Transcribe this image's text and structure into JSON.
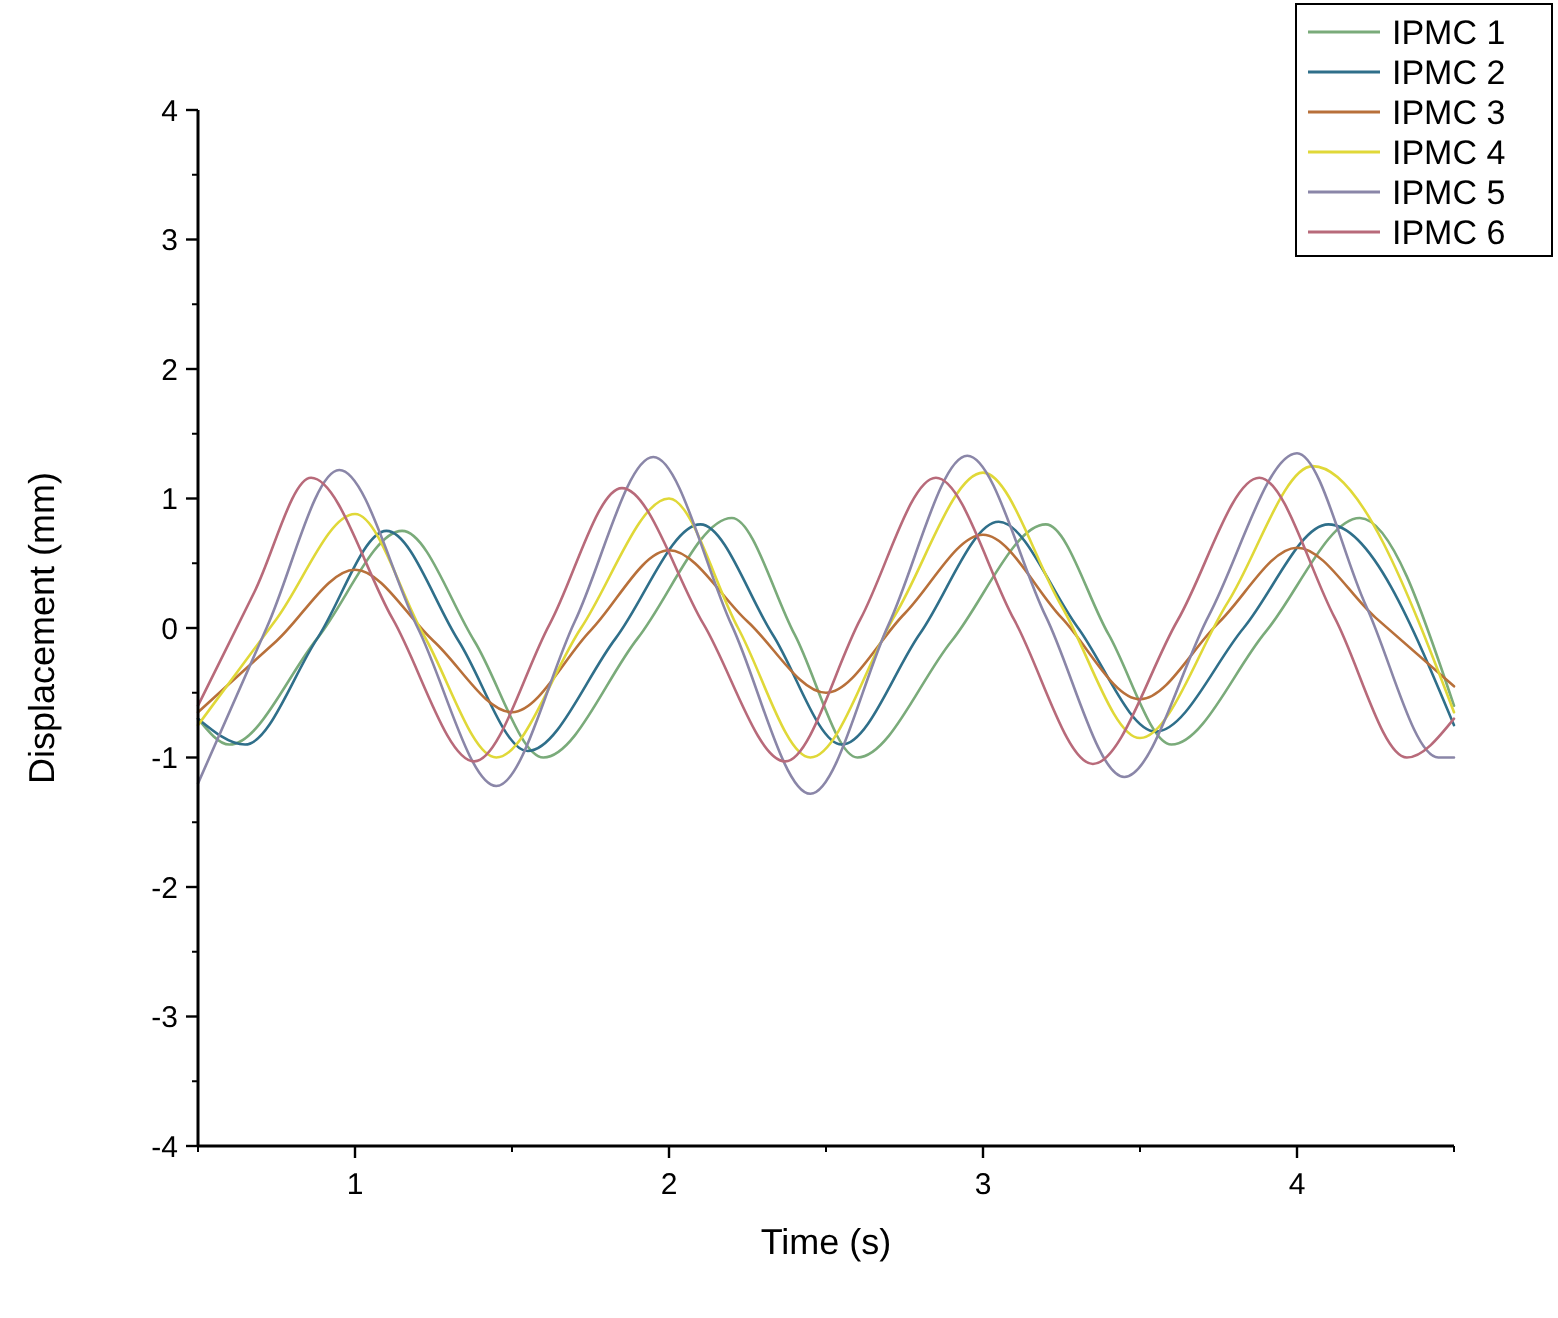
{
  "chart_data": {
    "type": "line",
    "xlabel": "Time (s)",
    "ylabel": "Displacement (mm)",
    "xlim": [
      0.5,
      4.5
    ],
    "xticks": [
      1,
      2,
      3,
      4
    ],
    "ylim": [
      -4,
      4
    ],
    "yticks": [
      -4,
      -3,
      -2,
      -1,
      0,
      1,
      2,
      3,
      4
    ],
    "legend": "top right",
    "grid": false,
    "marker": "none",
    "line_style": "solid",
    "series": [
      {
        "name": "IPMC 1",
        "color": "#7aab7a",
        "x": [
          0.5,
          0.6,
          0.88,
          1.15,
          1.38,
          1.6,
          1.9,
          2.2,
          2.4,
          2.6,
          2.9,
          3.2,
          3.4,
          3.6,
          3.9,
          4.2,
          4.5
        ],
        "values": [
          -0.7,
          -0.9,
          -0.08,
          0.75,
          -0.1,
          -1.0,
          -0.08,
          0.85,
          -0.05,
          -1.0,
          -0.1,
          0.8,
          -0.05,
          -0.9,
          -0.03,
          0.85,
          -0.6
        ]
      },
      {
        "name": "IPMC 2",
        "color": "#2f6f8a",
        "x": [
          0.5,
          0.65,
          0.88,
          1.1,
          1.33,
          1.55,
          1.83,
          2.1,
          2.33,
          2.55,
          2.8,
          3.05,
          3.3,
          3.55,
          3.83,
          4.1,
          4.5
        ],
        "values": [
          -0.7,
          -0.9,
          -0.08,
          0.75,
          -0.1,
          -0.95,
          -0.08,
          0.8,
          -0.05,
          -0.9,
          -0.04,
          0.82,
          0.01,
          -0.8,
          0.0,
          0.8,
          -0.75
        ]
      },
      {
        "name": "IPMC 3",
        "color": "#b8703a",
        "x": [
          0.5,
          0.75,
          1.0,
          1.25,
          1.5,
          1.75,
          2.0,
          2.25,
          2.5,
          2.75,
          3.0,
          3.25,
          3.5,
          3.75,
          4.0,
          4.25,
          4.5
        ],
        "values": [
          -0.65,
          -0.1,
          0.45,
          -0.1,
          -0.65,
          -0.02,
          0.6,
          0.05,
          -0.5,
          0.11,
          0.72,
          0.08,
          -0.55,
          0.04,
          0.62,
          0.08,
          -0.45
        ]
      },
      {
        "name": "IPMC 4",
        "color": "#e0d838",
        "x": [
          0.5,
          0.75,
          1.0,
          1.22,
          1.45,
          1.72,
          2.0,
          2.22,
          2.45,
          2.72,
          3.0,
          3.25,
          3.5,
          3.78,
          4.05,
          4.5
        ],
        "values": [
          -0.75,
          0.07,
          0.88,
          -0.06,
          -1.0,
          0.0,
          1.0,
          0.0,
          -1.0,
          0.1,
          1.2,
          0.17,
          -0.85,
          0.2,
          1.25,
          -0.65
        ]
      },
      {
        "name": "IPMC 5",
        "color": "#8a86a8",
        "x": [
          0.5,
          0.72,
          0.95,
          1.2,
          1.45,
          1.7,
          1.95,
          2.2,
          2.45,
          2.7,
          2.95,
          3.2,
          3.45,
          3.72,
          4.0,
          4.22,
          4.45,
          4.5
        ],
        "values": [
          -1.2,
          0.01,
          1.22,
          0.0,
          -1.22,
          0.05,
          1.32,
          0.02,
          -1.28,
          0.03,
          1.33,
          0.09,
          -1.15,
          0.1,
          1.35,
          0.17,
          -1.0,
          -1.0
        ]
      },
      {
        "name": "IPMC 6",
        "color": "#b86a7a",
        "x": [
          0.5,
          0.68,
          0.86,
          1.12,
          1.38,
          1.62,
          1.85,
          2.11,
          2.37,
          2.61,
          2.85,
          3.1,
          3.35,
          3.62,
          3.88,
          4.12,
          4.35,
          4.5
        ],
        "values": [
          -0.6,
          0.28,
          1.16,
          0.07,
          -1.03,
          0.03,
          1.08,
          0.03,
          -1.03,
          0.07,
          1.16,
          0.06,
          -1.05,
          0.06,
          1.16,
          0.08,
          -1.0,
          -0.7
        ]
      }
    ]
  }
}
